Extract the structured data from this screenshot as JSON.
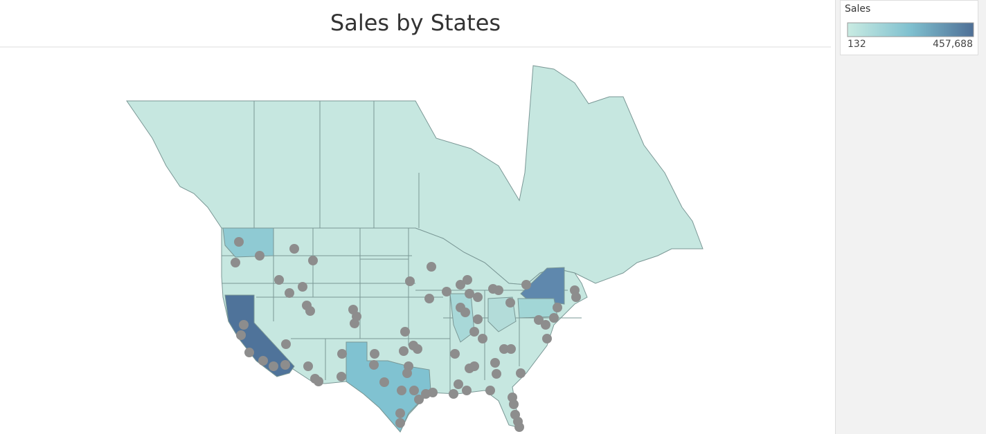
{
  "header": {
    "title": "Sales by States"
  },
  "legend": {
    "title": "Sales",
    "min": 132,
    "max": {
      "value": 457688,
      "label": "457,688"
    }
  }
}
